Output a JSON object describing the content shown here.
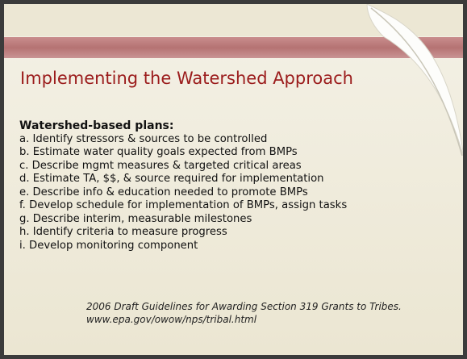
{
  "title": "Implementing the Watershed Approach",
  "heading": "Watershed-based plans:",
  "items": [
    "a. Identify stressors & sources to be controlled",
    "b. Estimate water quality goals expected from BMPs",
    "c. Describe mgmt measures & targeted critical areas",
    "d. Estimate TA, $$, & source required for implementation",
    "e. Describe info & education needed to promote BMPs",
    "f. Develop schedule for implementation of BMPs, assign tasks",
    "g. Describe interim, measurable milestones",
    "h. Identify criteria to measure progress",
    "i. Develop monitoring component"
  ],
  "footer": [
    "2006 Draft Guidelines for Awarding Section 319 Grants to Tribes.",
    "www.epa.gov/owow/nps/tribal.html"
  ]
}
